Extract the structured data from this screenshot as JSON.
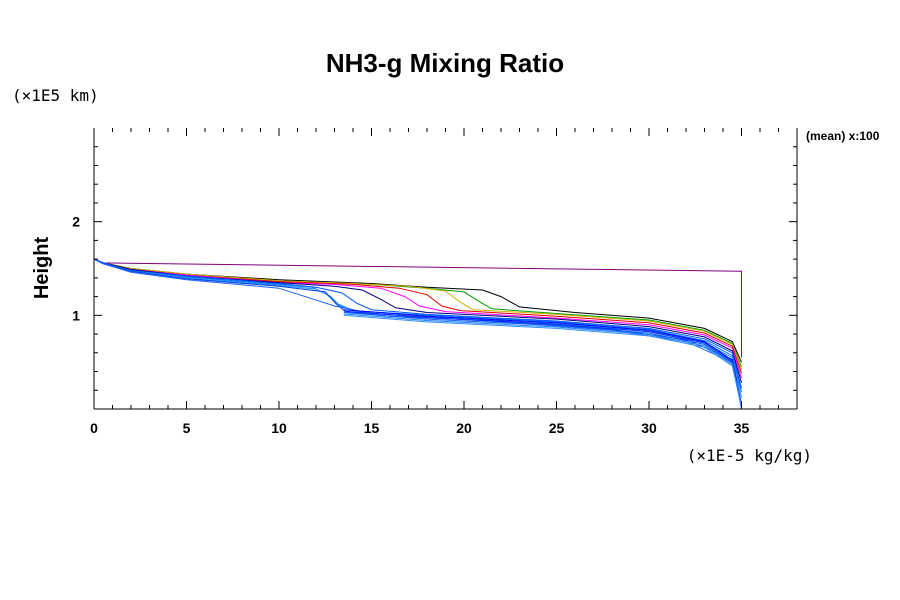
{
  "chart_data": {
    "type": "line",
    "title": "NH3-g Mixing Ratio",
    "ylabel": "Height",
    "y_unit": "(×1E5 km)",
    "x_unit": "(×1E-5 kg/kg)",
    "annotation": "(mean) x:100",
    "xlim": [
      0,
      38
    ],
    "ylim": [
      0,
      3
    ],
    "x_major_ticks": [
      0,
      5,
      10,
      15,
      20,
      25,
      30,
      35
    ],
    "x_tick_labels": [
      "0",
      "5",
      "10",
      "15",
      "20",
      "25",
      "30",
      "35"
    ],
    "y_major_ticks": [
      1,
      2
    ],
    "y_tick_labels": [
      "1",
      "2"
    ],
    "x_minor_step": 1,
    "y_minor_step": 0.2,
    "series": [
      {
        "name": "outlier-purple",
        "color": "#800080",
        "points": [
          [
            0,
            1.6
          ],
          [
            0.5,
            1.56
          ],
          [
            35,
            1.47
          ],
          [
            35,
            0.55
          ]
        ]
      },
      {
        "name": "run-black",
        "color": "#000000",
        "points": [
          [
            0,
            1.6
          ],
          [
            0.5,
            1.56
          ],
          [
            2,
            1.5
          ],
          [
            5,
            1.44
          ],
          [
            10,
            1.38
          ],
          [
            15,
            1.34
          ],
          [
            18,
            1.3
          ],
          [
            21,
            1.27
          ],
          [
            22,
            1.2
          ],
          [
            23,
            1.09
          ],
          [
            26,
            1.03
          ],
          [
            30,
            0.97
          ],
          [
            33,
            0.86
          ],
          [
            34.5,
            0.72
          ],
          [
            35,
            0.5
          ]
        ]
      },
      {
        "name": "run-green",
        "color": "#00a000",
        "points": [
          [
            0,
            1.6
          ],
          [
            0.5,
            1.56
          ],
          [
            2,
            1.5
          ],
          [
            5,
            1.44
          ],
          [
            10,
            1.37
          ],
          [
            15,
            1.33
          ],
          [
            18,
            1.29
          ],
          [
            20,
            1.25
          ],
          [
            20.8,
            1.15
          ],
          [
            21.5,
            1.07
          ],
          [
            25,
            1.02
          ],
          [
            30,
            0.95
          ],
          [
            33,
            0.84
          ],
          [
            34.5,
            0.7
          ],
          [
            35,
            0.45
          ]
        ]
      },
      {
        "name": "run-yellow",
        "color": "#d4b000",
        "points": [
          [
            0,
            1.6
          ],
          [
            0.5,
            1.56
          ],
          [
            2,
            1.5
          ],
          [
            5,
            1.44
          ],
          [
            10,
            1.37
          ],
          [
            14,
            1.34
          ],
          [
            17,
            1.31
          ],
          [
            19,
            1.26
          ],
          [
            19.8,
            1.14
          ],
          [
            20.5,
            1.06
          ],
          [
            25,
            1.01
          ],
          [
            30,
            0.94
          ],
          [
            33,
            0.83
          ],
          [
            34.5,
            0.69
          ],
          [
            35,
            0.42
          ]
        ]
      },
      {
        "name": "run-red",
        "color": "#e00000",
        "points": [
          [
            0,
            1.6
          ],
          [
            0.5,
            1.56
          ],
          [
            2,
            1.49
          ],
          [
            5,
            1.43
          ],
          [
            10,
            1.36
          ],
          [
            14,
            1.33
          ],
          [
            16.5,
            1.29
          ],
          [
            18,
            1.22
          ],
          [
            18.8,
            1.1
          ],
          [
            19.8,
            1.05
          ],
          [
            25,
            0.99
          ],
          [
            30,
            0.92
          ],
          [
            33,
            0.81
          ],
          [
            34.5,
            0.67
          ],
          [
            35,
            0.38
          ]
        ]
      },
      {
        "name": "run-magenta",
        "color": "#ff00ff",
        "points": [
          [
            0,
            1.6
          ],
          [
            0.5,
            1.56
          ],
          [
            2,
            1.49
          ],
          [
            5,
            1.43
          ],
          [
            10,
            1.35
          ],
          [
            13,
            1.33
          ],
          [
            15.5,
            1.29
          ],
          [
            16.8,
            1.2
          ],
          [
            17.6,
            1.1
          ],
          [
            19,
            1.04
          ],
          [
            25,
            0.97
          ],
          [
            30,
            0.9
          ],
          [
            33,
            0.79
          ],
          [
            34.5,
            0.65
          ],
          [
            35,
            0.33
          ]
        ]
      },
      {
        "name": "run-navy",
        "color": "#000080",
        "points": [
          [
            0,
            1.6
          ],
          [
            0.5,
            1.56
          ],
          [
            2,
            1.49
          ],
          [
            5,
            1.42
          ],
          [
            10,
            1.35
          ],
          [
            13,
            1.31
          ],
          [
            14.5,
            1.27
          ],
          [
            15.6,
            1.16
          ],
          [
            16.3,
            1.08
          ],
          [
            18,
            1.03
          ],
          [
            25,
            0.96
          ],
          [
            30,
            0.88
          ],
          [
            33,
            0.77
          ],
          [
            34.5,
            0.62
          ],
          [
            35,
            0.28
          ]
        ]
      },
      {
        "name": "run-blue-a",
        "color": "#0050ff",
        "points": [
          [
            0,
            1.6
          ],
          [
            0.5,
            1.56
          ],
          [
            2,
            1.48
          ],
          [
            5,
            1.42
          ],
          [
            10,
            1.34
          ],
          [
            12,
            1.3
          ],
          [
            13.4,
            1.24
          ],
          [
            14.2,
            1.13
          ],
          [
            15,
            1.06
          ],
          [
            18,
            1.01
          ],
          [
            25,
            0.94
          ],
          [
            30,
            0.86
          ],
          [
            33,
            0.75
          ],
          [
            34.5,
            0.6
          ],
          [
            35,
            0.22
          ]
        ]
      },
      {
        "name": "run-blue-b",
        "color": "#0070ff",
        "points": [
          [
            0,
            1.6
          ],
          [
            0.5,
            1.55
          ],
          [
            2,
            1.48
          ],
          [
            5,
            1.41
          ],
          [
            10,
            1.33
          ],
          [
            11.8,
            1.3
          ],
          [
            12.6,
            1.22
          ],
          [
            13.2,
            1.12
          ],
          [
            14,
            1.05
          ],
          [
            18,
            1.0
          ],
          [
            25,
            0.93
          ],
          [
            30,
            0.85
          ],
          [
            33,
            0.73
          ],
          [
            34.5,
            0.57
          ],
          [
            35,
            0.18
          ]
        ]
      },
      {
        "name": "run-blue-c",
        "color": "#1e90ff",
        "points": [
          [
            0,
            1.6
          ],
          [
            0.5,
            1.55
          ],
          [
            2,
            1.47
          ],
          [
            5,
            1.4
          ],
          [
            10,
            1.32
          ],
          [
            12,
            1.28
          ],
          [
            12.8,
            1.2
          ],
          [
            13.3,
            1.1
          ],
          [
            14.5,
            1.03
          ],
          [
            18,
            0.98
          ],
          [
            25,
            0.91
          ],
          [
            30,
            0.83
          ],
          [
            33,
            0.71
          ],
          [
            34.5,
            0.55
          ],
          [
            35,
            0.12
          ]
        ]
      },
      {
        "name": "run-blue-d",
        "color": "#0040e0",
        "points": [
          [
            0,
            1.6
          ],
          [
            0.5,
            1.55
          ],
          [
            2,
            1.47
          ],
          [
            5,
            1.39
          ],
          [
            10,
            1.31
          ],
          [
            12.5,
            1.25
          ],
          [
            13.1,
            1.12
          ],
          [
            13.6,
            1.04
          ],
          [
            16,
            0.99
          ],
          [
            22,
            0.94
          ],
          [
            28,
            0.85
          ],
          [
            32,
            0.74
          ],
          [
            34.5,
            0.53
          ],
          [
            35,
            0.05
          ]
        ]
      },
      {
        "name": "run-blue-e",
        "color": "#2060ff",
        "points": [
          [
            0,
            1.6
          ],
          [
            0.5,
            1.55
          ],
          [
            2,
            1.46
          ],
          [
            5,
            1.38
          ],
          [
            10,
            1.29
          ],
          [
            13,
            1.1
          ],
          [
            15,
            1.02
          ],
          [
            22,
            0.93
          ],
          [
            28,
            0.84
          ],
          [
            32,
            0.72
          ],
          [
            34.5,
            0.5
          ],
          [
            35,
            0.0
          ]
        ]
      }
    ]
  }
}
